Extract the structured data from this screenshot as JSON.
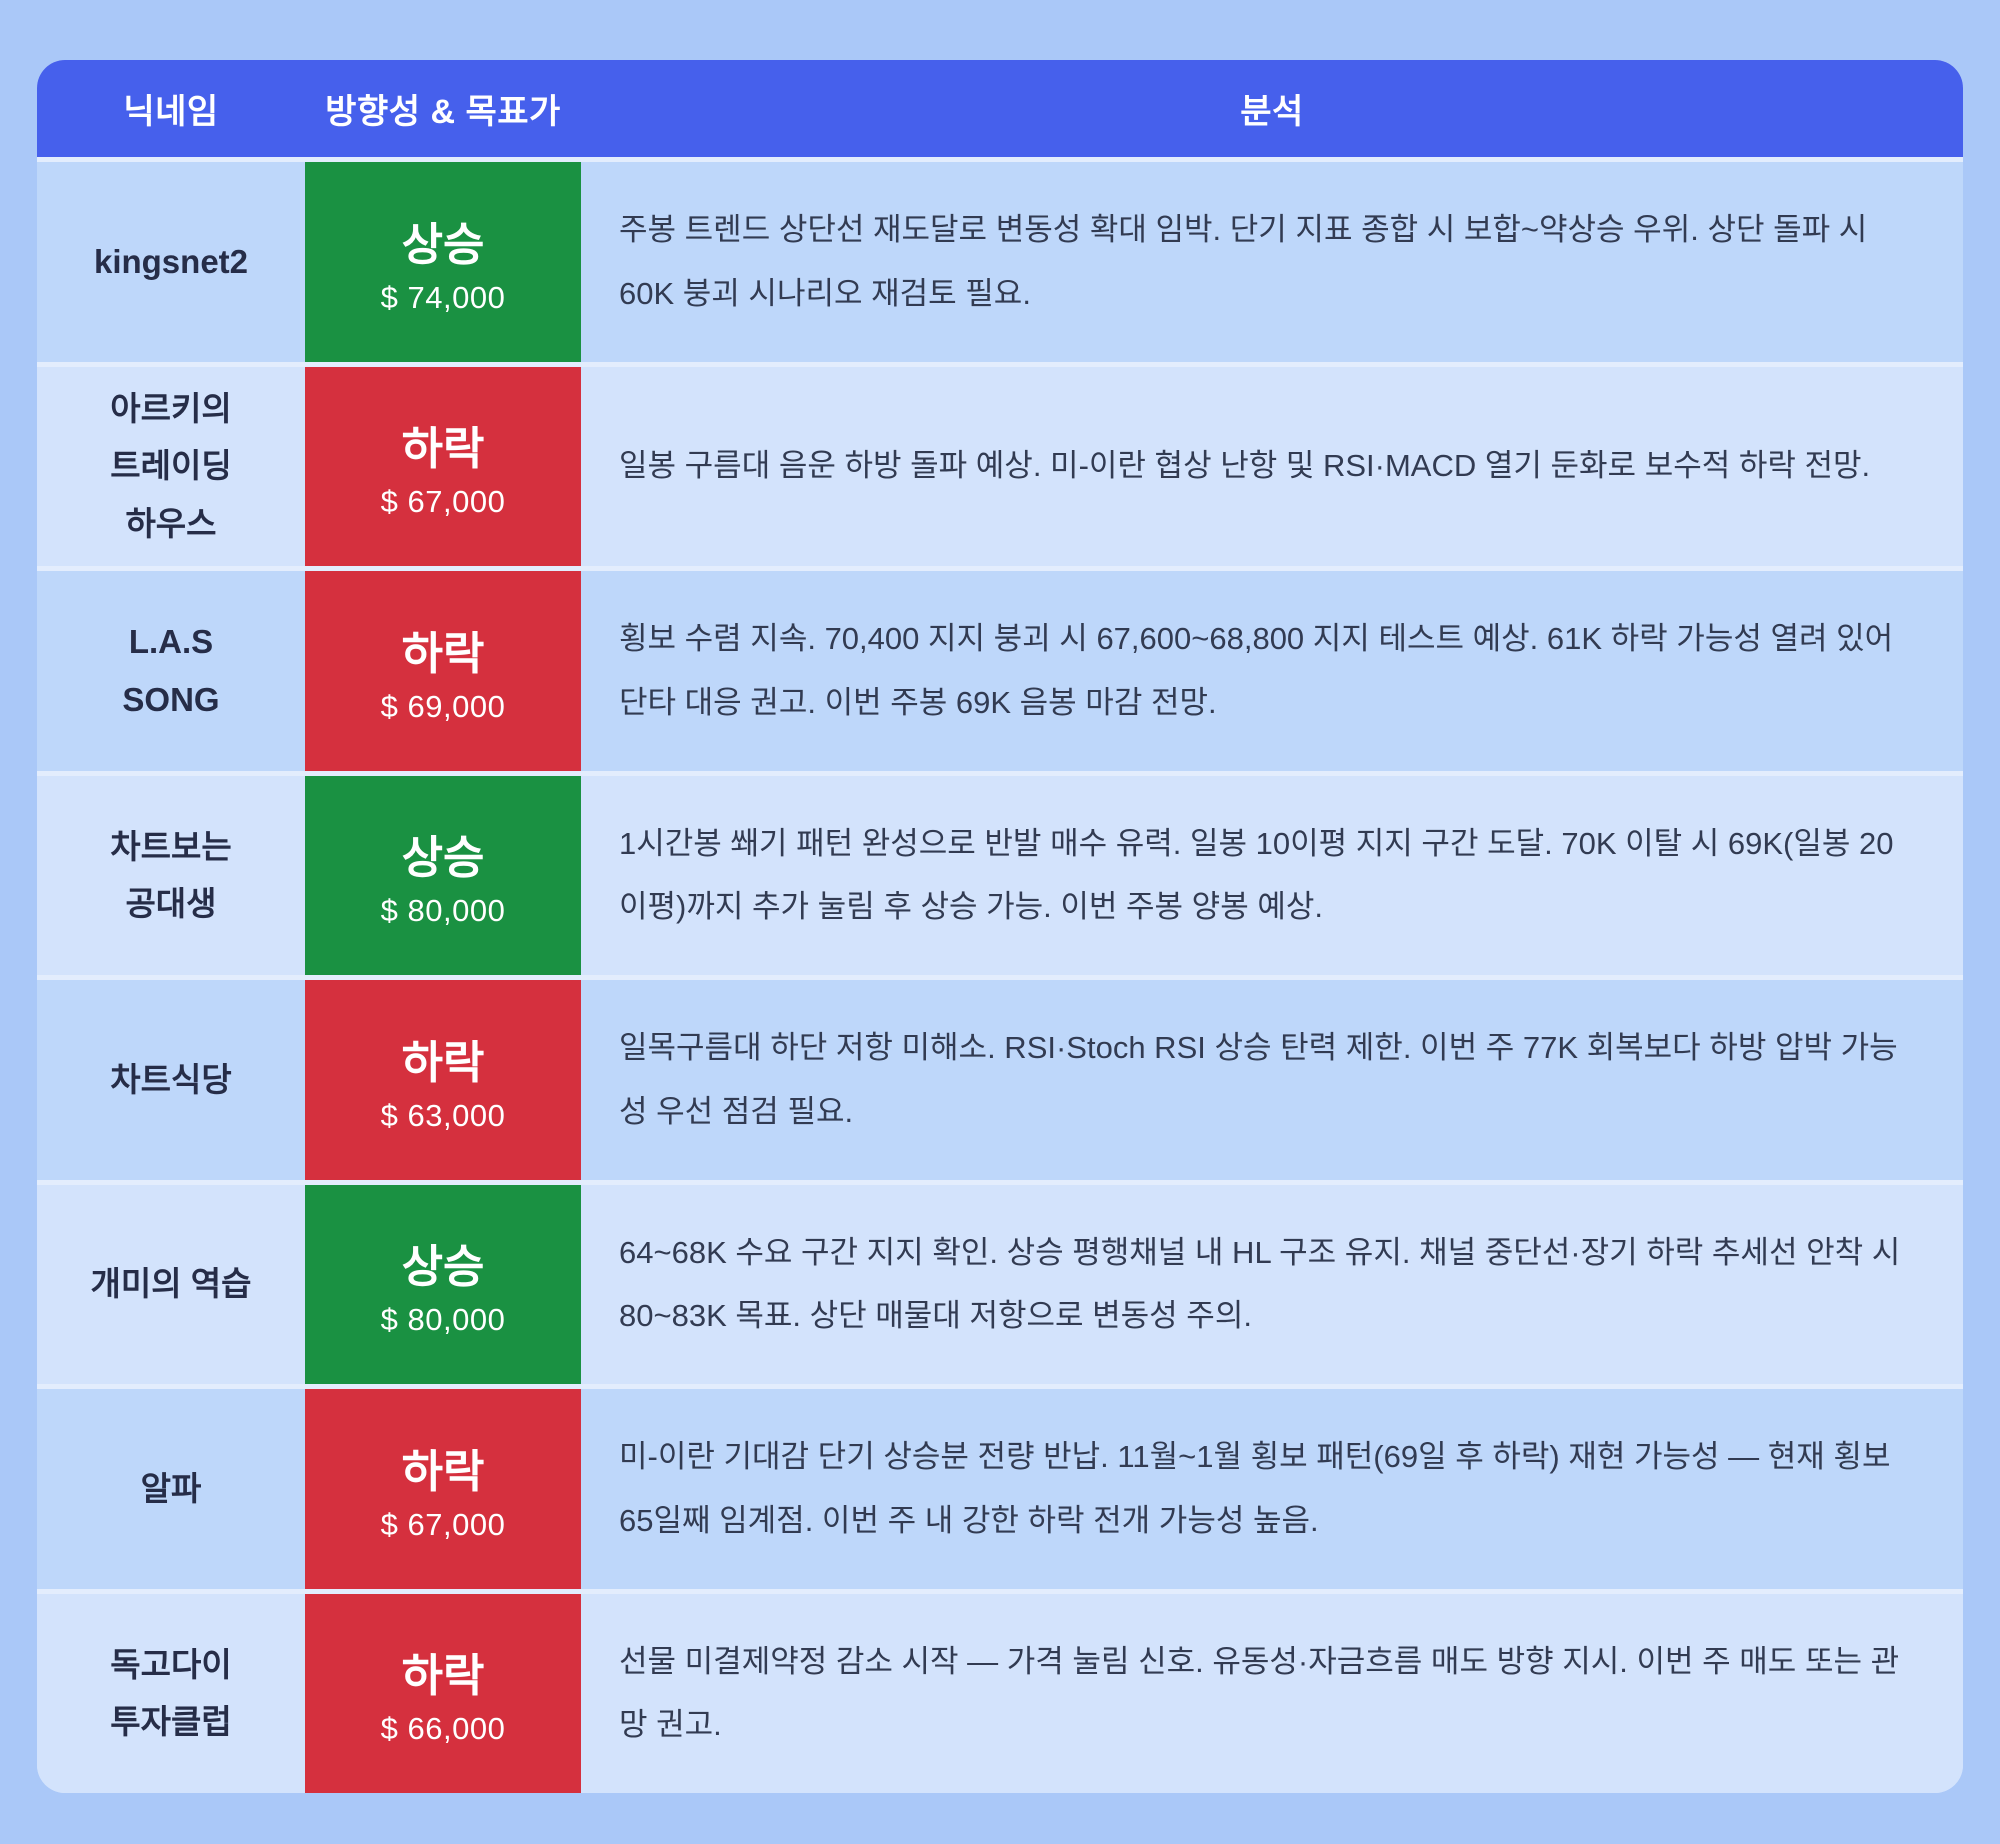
{
  "colors": {
    "page_background": "#aac8f8",
    "header_background": "#4660ec",
    "row_odd_background": "#bed7fa",
    "row_even_background": "#d3e3fc",
    "up_green": "#1a9142",
    "down_red": "#d5303e",
    "nickname_text": "#262d48",
    "analysis_text": "#323b52"
  },
  "table": {
    "columns": [
      "닉네임",
      "방향성 & 목표가",
      "분석"
    ],
    "rows": [
      {
        "nickname": "kingsnet2",
        "direction": "up",
        "direction_label": "상승",
        "target_price": "$ 74,000",
        "analysis": "주봉 트렌드 상단선 재도달로 변동성 확대 임박. 단기 지표 종합 시 보합~약상승 우위. 상단 돌파 시 60K 붕괴 시나리오 재검토 필요."
      },
      {
        "nickname": "아르키의\n트레이딩\n하우스",
        "direction": "down",
        "direction_label": "하락",
        "target_price": "$ 67,000",
        "analysis": "일봉 구름대 음운 하방 돌파 예상. 미-이란 협상 난항 및 RSI·MACD 열기 둔화로 보수적 하락 전망."
      },
      {
        "nickname": "L.A.S\nSONG",
        "direction": "down",
        "direction_label": "하락",
        "target_price": "$ 69,000",
        "analysis": "횡보 수렴 지속. 70,400 지지 붕괴 시 67,600~68,800 지지 테스트 예상. 61K 하락 가능성 열려 있어 단타 대응 권고. 이번 주봉 69K 음봉 마감 전망."
      },
      {
        "nickname": "차트보는\n공대생",
        "direction": "up",
        "direction_label": "상승",
        "target_price": "$ 80,000",
        "analysis": "1시간봉 쐐기 패턴 완성으로 반발 매수 유력. 일봉 10이평 지지 구간 도달. 70K 이탈 시 69K(일봉 20이평)까지 추가 눌림 후 상승 가능. 이번 주봉 양봉 예상."
      },
      {
        "nickname": "차트식당",
        "direction": "down",
        "direction_label": "하락",
        "target_price": "$ 63,000",
        "analysis": "일목구름대 하단 저항 미해소. RSI·Stoch RSI 상승 탄력 제한. 이번 주 77K 회복보다 하방 압박 가능성 우선 점검 필요."
      },
      {
        "nickname": "개미의 역습",
        "direction": "up",
        "direction_label": "상승",
        "target_price": "$ 80,000",
        "analysis": "64~68K 수요 구간 지지 확인. 상승 평행채널 내 HL 구조 유지. 채널 중단선·장기 하락 추세선 안착 시 80~83K 목표. 상단 매물대 저항으로 변동성 주의."
      },
      {
        "nickname": "알파",
        "direction": "down",
        "direction_label": "하락",
        "target_price": "$ 67,000",
        "analysis": "미-이란 기대감 단기 상승분 전량 반납. 11월~1월 횡보 패턴(69일 후 하락) 재현 가능성 — 현재 횡보 65일째 임계점. 이번 주 내 강한 하락 전개 가능성 높음."
      },
      {
        "nickname": "독고다이\n투자클럽",
        "direction": "down",
        "direction_label": "하락",
        "target_price": "$ 66,000",
        "analysis": "선물 미결제약정 감소 시작 — 가격 눌림 신호. 유동성·자금흐름 매도 방향 지시. 이번 주 매도 또는 관망 권고."
      }
    ]
  },
  "chart_data": {
    "type": "table",
    "title": "",
    "columns": [
      "닉네임",
      "방향성 & 목표가",
      "분석"
    ],
    "rows": [
      [
        "kingsnet2",
        "상승 $ 74,000",
        "주봉 트렌드 상단선 재도달로 변동성 확대 임박. 단기 지표 종합 시 보합~약상승 우위. 상단 돌파 시 60K 붕괴 시나리오 재검토 필요."
      ],
      [
        "아르키의 트레이딩 하우스",
        "하락 $ 67,000",
        "일봉 구름대 음운 하방 돌파 예상. 미-이란 협상 난항 및 RSI·MACD 열기 둔화로 보수적 하락 전망."
      ],
      [
        "L.A.S SONG",
        "하락 $ 69,000",
        "횡보 수렴 지속. 70,400 지지 붕괴 시 67,600~68,800 지지 테스트 예상. 61K 하락 가능성 열려 있어 단타 대응 권고. 이번 주봉 69K 음봉 마감 전망."
      ],
      [
        "차트보는 공대생",
        "상승 $ 80,000",
        "1시간봉 쐐기 패턴 완성으로 반발 매수 유력. 일봉 10이평 지지 구간 도달. 70K 이탈 시 69K(일봉 20이평)까지 추가 눌림 후 상승 가능. 이번 주봉 양봉 예상."
      ],
      [
        "차트식당",
        "하락 $ 63,000",
        "일목구름대 하단 저항 미해소. RSI·Stoch RSI 상승 탄력 제한. 이번 주 77K 회복보다 하방 압박 가능성 우선 점검 필요."
      ],
      [
        "개미의 역습",
        "상승 $ 80,000",
        "64~68K 수요 구간 지지 확인. 상승 평행채널 내 HL 구조 유지. 채널 중단선·장기 하락 추세선 안착 시 80~83K 목표. 상단 매물대 저항으로 변동성 주의."
      ],
      [
        "알파",
        "하락 $ 67,000",
        "미-이란 기대감 단기 상승분 전량 반납. 11월~1월 횡보 패턴(69일 후 하락) 재현 가능성 — 현재 횡보 65일째 임계점. 이번 주 내 강한 하락 전개 가능성 높음."
      ],
      [
        "독고다이 투자클럽",
        "하락 $ 66,000",
        "선물 미결제약정 감소 시작 — 가격 눌림 신호. 유동성·자금흐름 매도 방향 지시. 이번 주 매도 또는 관망 권고."
      ]
    ]
  }
}
